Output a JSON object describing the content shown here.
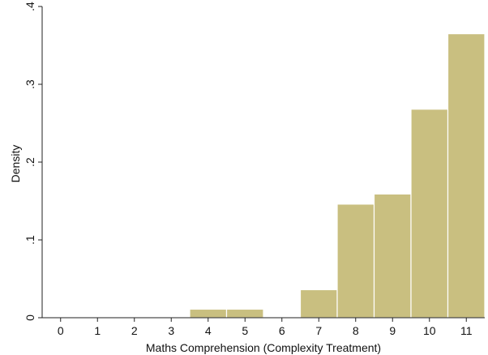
{
  "chart_data": {
    "type": "bar",
    "title": "",
    "xlabel": "Maths Comprehension (Complexity Treatment)",
    "ylabel": "Density",
    "x_ticks": [
      0,
      1,
      2,
      3,
      4,
      5,
      6,
      7,
      8,
      9,
      10,
      11
    ],
    "x_tick_labels": [
      "0",
      "1",
      "2",
      "3",
      "4",
      "5",
      "6",
      "7",
      "8",
      "9",
      "10",
      "11"
    ],
    "y_ticks": [
      0,
      0.1,
      0.2,
      0.3,
      0.4
    ],
    "y_tick_labels": [
      "0",
      ".1",
      ".2",
      ".3",
      ".4"
    ],
    "xlim": [
      -0.5,
      11.5
    ],
    "ylim": [
      0,
      0.4
    ],
    "bin_width": 1,
    "bins": [
      {
        "x": 4,
        "value": 0.011
      },
      {
        "x": 5,
        "value": 0.011
      },
      {
        "x": 7,
        "value": 0.036
      },
      {
        "x": 8,
        "value": 0.146
      },
      {
        "x": 9,
        "value": 0.159
      },
      {
        "x": 10,
        "value": 0.268
      },
      {
        "x": 11,
        "value": 0.365
      }
    ],
    "grid": false,
    "legend": "none",
    "colors": {
      "bar_fill": "#c9bf80",
      "bar_stroke": "#ffffff",
      "axis": "#222222",
      "plot_background": "#ffffff",
      "outer_background": "#ffffff"
    }
  }
}
